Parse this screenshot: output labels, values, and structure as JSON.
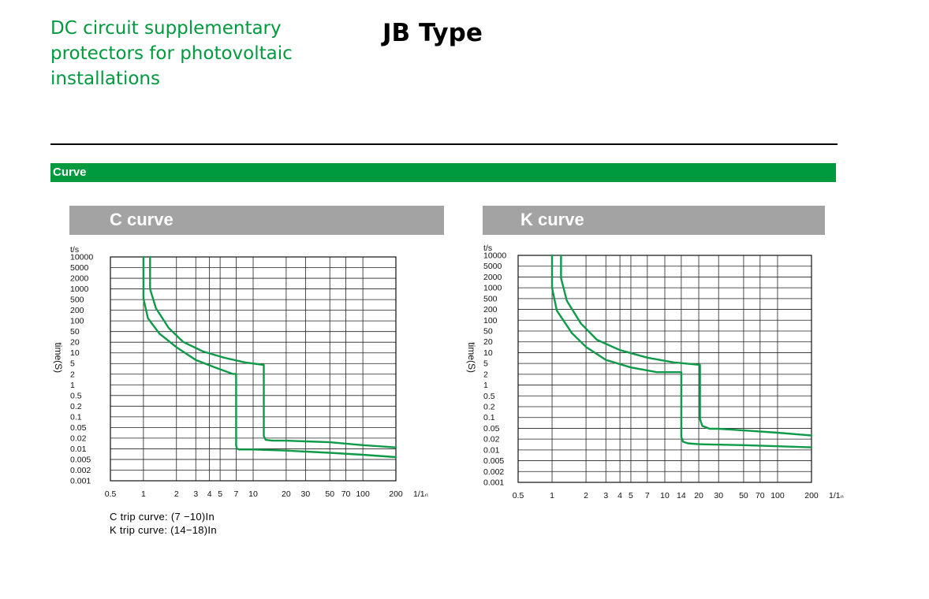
{
  "document": {
    "title_lines": [
      "DC circuit supplementary",
      "protectors for photovoltaic",
      "installations"
    ],
    "product": "JB Type",
    "section": "Curve",
    "colors": {
      "brand_green": "#009a3e",
      "header_gray": "#a3a3a3",
      "curve_green": "#0e9a48"
    }
  },
  "curve_notes": [
    "C trip curve: (7 −10)In",
    "K trip curve: (14−18)In"
  ],
  "chart_data": [
    {
      "type": "line",
      "title": "C curve",
      "ylabel": "time(S)",
      "yunit": "t/s",
      "xunit": "1/1ₙ",
      "x_scale": "log",
      "y_scale": "log",
      "xlim": [
        0.5,
        200
      ],
      "ylim": [
        0.001,
        10000
      ],
      "grid": true,
      "y_ticks": [
        "10000",
        "5000",
        "2000",
        "1000",
        "500",
        "200",
        "100",
        "50",
        "20",
        "10",
        "5",
        "2",
        "1",
        "0.5",
        "0.2",
        "0.1",
        "0.05",
        "0.02",
        "0.01",
        "0.005",
        "0.002",
        "0.001"
      ],
      "x_ticks": [
        "0.5",
        "1",
        "2",
        "3",
        "4",
        "5",
        "7",
        "10",
        "20",
        "30",
        "50",
        "70",
        "100",
        "200"
      ],
      "series": [
        {
          "x": [
            1,
            1.0,
            1.1,
            1.4,
            2.0,
            3.0,
            4.5,
            6.5,
            7,
            7,
            7.1,
            7.5,
            8.5,
            10,
            20,
            50,
            100,
            200
          ],
          "y": [
            10000,
            500,
            120,
            40,
            15,
            6,
            3.5,
            2.2,
            2.2,
            0.013,
            0.01,
            0.0095,
            0.0095,
            0.0095,
            0.0088,
            0.0075,
            0.0065,
            0.0055
          ]
        },
        {
          "x": [
            1.15,
            1.15,
            1.3,
            1.7,
            2.3,
            3.5,
            5.5,
            8.5,
            12.5,
            12.5,
            13,
            15,
            20,
            50,
            100,
            200
          ],
          "y": [
            10000,
            1000,
            250,
            60,
            22,
            11,
            7,
            5,
            4.2,
            0.025,
            0.019,
            0.018,
            0.018,
            0.016,
            0.013,
            0.011
          ]
        }
      ]
    },
    {
      "type": "line",
      "title": "K curve",
      "ylabel": "time(S)",
      "yunit": "t/s",
      "xunit": "1/1ₙ",
      "x_scale": "log",
      "y_scale": "log",
      "xlim": [
        0.5,
        200
      ],
      "ylim": [
        0.001,
        10000
      ],
      "grid": true,
      "y_ticks": [
        "10000",
        "5000",
        "2000",
        "1000",
        "500",
        "200",
        "100",
        "50",
        "20",
        "10",
        "5",
        "2",
        "1",
        "0.5",
        "0.2",
        "0.1",
        "0.05",
        "0.02",
        "0.01",
        "0.005",
        "0.002",
        "0.001"
      ],
      "x_ticks": [
        "0.5",
        "1",
        "2",
        "3",
        "4",
        "5",
        "7",
        "10",
        "14",
        "20",
        "30",
        "50",
        "70",
        "100",
        "200"
      ],
      "series": [
        {
          "x": [
            1,
            1,
            1.1,
            1.5,
            2.0,
            3.0,
            5.0,
            8.5,
            14,
            14,
            14.5,
            16,
            20,
            50,
            100,
            200
          ],
          "y": [
            10000,
            1000,
            200,
            40,
            15,
            6,
            3.5,
            2.5,
            2.5,
            0.025,
            0.018,
            0.016,
            0.015,
            0.014,
            0.013,
            0.012
          ]
        },
        {
          "x": [
            1.2,
            1.2,
            1.35,
            1.8,
            2.5,
            4.0,
            7.0,
            12,
            20.5,
            20.5,
            21.5,
            25,
            30,
            50,
            100,
            200
          ],
          "y": [
            10000,
            2000,
            400,
            80,
            25,
            12,
            7,
            5,
            4.2,
            0.09,
            0.055,
            0.045,
            0.045,
            0.04,
            0.034,
            0.028
          ]
        }
      ]
    }
  ]
}
